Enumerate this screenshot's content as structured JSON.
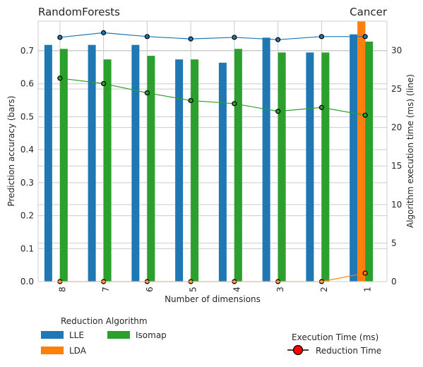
{
  "chart_data": {
    "type": "bar+line",
    "title_left": "RandomForests",
    "title_right": "Cancer",
    "xlabel": "Number of dimensions",
    "ylabel_left": "Prediction accuracy (bars)",
    "ylabel_right": "Algorithm execution time (ms) (line)",
    "categories": [
      "8",
      "7",
      "6",
      "5",
      "4",
      "3",
      "2",
      "1"
    ],
    "y_left_ticks": [
      "0.0",
      "0.1",
      "0.2",
      "0.3",
      "0.4",
      "0.5",
      "0.6",
      "0.7"
    ],
    "y_left_range": [
      0,
      0.79
    ],
    "y_right_ticks": [
      "0",
      "5",
      "10",
      "15",
      "20",
      "25",
      "30"
    ],
    "y_right_range": [
      0,
      33.8
    ],
    "grid": true,
    "bar_series": [
      {
        "name": "LLE",
        "color": "#1f77b4",
        "values": [
          0.718,
          0.718,
          0.718,
          0.674,
          0.664,
          0.74,
          0.695,
          0.75
        ]
      },
      {
        "name": "LDA",
        "color": "#ff7f0e",
        "values": [
          0.0,
          0.0,
          0.0,
          0.0,
          0.0,
          0.0,
          0.0,
          0.79
        ]
      },
      {
        "name": "Isomap",
        "color": "#2ca02c",
        "values": [
          0.706,
          0.674,
          0.685,
          0.674,
          0.706,
          0.695,
          0.695,
          0.728
        ]
      }
    ],
    "line_series": [
      {
        "color": "#1f77b4",
        "values": [
          31.7,
          32.3,
          31.8,
          31.5,
          31.7,
          31.4,
          31.8,
          31.8
        ]
      },
      {
        "color": "#ff7f0e",
        "values": [
          0.0,
          0.0,
          0.0,
          0.0,
          0.0,
          0.0,
          0.0,
          1.1
        ]
      },
      {
        "color": "#2ca02c",
        "values": [
          26.4,
          25.7,
          24.5,
          23.5,
          23.1,
          22.1,
          22.6,
          21.6
        ]
      }
    ],
    "legend_bars": {
      "title": "Reduction Algorithm",
      "entries": [
        {
          "label": "LLE",
          "color": "#1f77b4"
        },
        {
          "label": "LDA",
          "color": "#ff7f0e"
        },
        {
          "label": "Isomap",
          "color": "#2ca02c"
        }
      ]
    },
    "legend_line": {
      "title": "Execution Time (ms)",
      "label": "Reduction Time",
      "marker_color": "#ff0000"
    }
  }
}
